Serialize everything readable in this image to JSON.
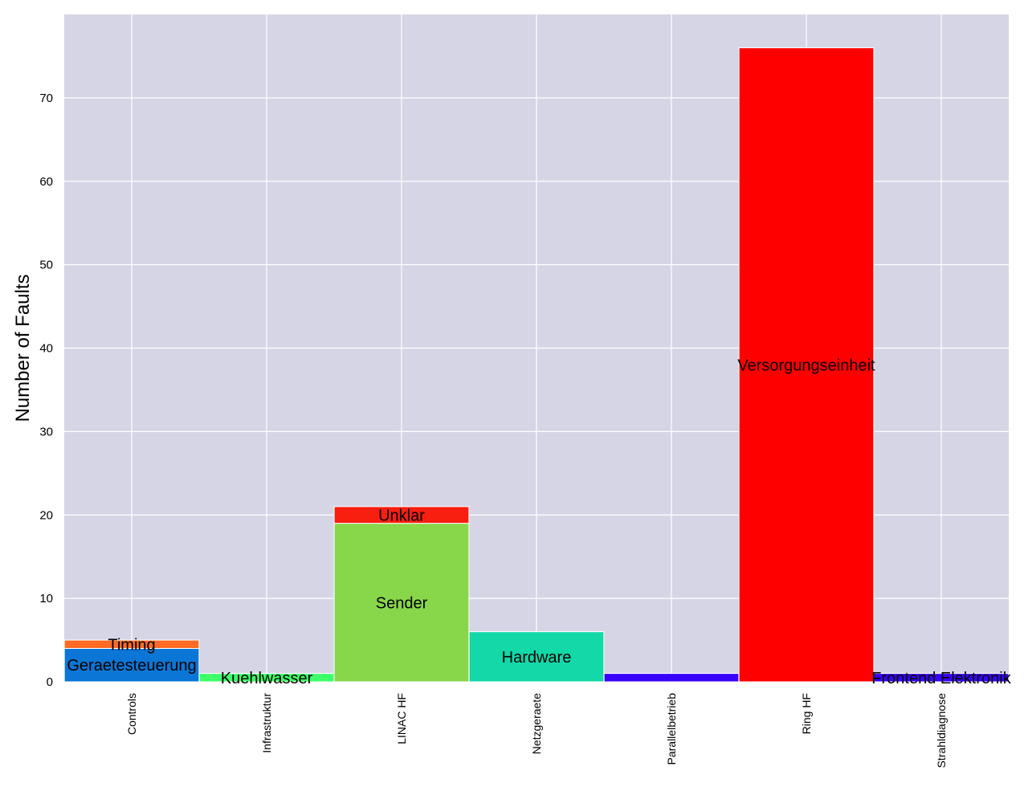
{
  "chart_data": {
    "type": "bar",
    "stacked": true,
    "title": "",
    "xlabel": "",
    "ylabel": "Number of Faults",
    "ylim": [
      0,
      80
    ],
    "yticks": [
      0,
      10,
      20,
      30,
      40,
      50,
      60,
      70
    ],
    "grid": true,
    "categories": [
      "Controls",
      "Infrastruktur",
      "LINAC HF",
      "Netzgeraete",
      "Parallelbetrieb",
      "Ring HF",
      "Strahldiagnose"
    ],
    "bars": [
      {
        "category": "Controls",
        "segments": [
          {
            "label": "Geraetesteuerung",
            "value": 4,
            "color": "#0b76d6"
          },
          {
            "label": "Timing",
            "value": 1,
            "color": "#ff6a24"
          }
        ]
      },
      {
        "category": "Infrastruktur",
        "segments": [
          {
            "label": "Kuehlwasser",
            "value": 1,
            "color": "#3cff6a"
          }
        ]
      },
      {
        "category": "LINAC HF",
        "segments": [
          {
            "label": "Sender",
            "value": 19,
            "color": "#88d64a"
          },
          {
            "label": "Unklar",
            "value": 2,
            "color": "#f81e10"
          }
        ]
      },
      {
        "category": "Netzgeraete",
        "segments": [
          {
            "label": "Hardware",
            "value": 6,
            "color": "#13d8a8"
          }
        ]
      },
      {
        "category": "Parallelbetrieb",
        "segments": [
          {
            "label": "",
            "value": 1,
            "color": "#3a00ff"
          }
        ]
      },
      {
        "category": "Ring HF",
        "segments": [
          {
            "label": "Versorgungseinheit",
            "value": 76,
            "color": "#ff0000"
          }
        ]
      },
      {
        "category": "Strahldiagnose",
        "segments": [
          {
            "label": "Frontend Elektronik",
            "value": 1,
            "color": "#3a00ff"
          }
        ]
      }
    ],
    "colors": {
      "plot_background": "#d5d5e6",
      "grid": "#ffffff"
    }
  }
}
